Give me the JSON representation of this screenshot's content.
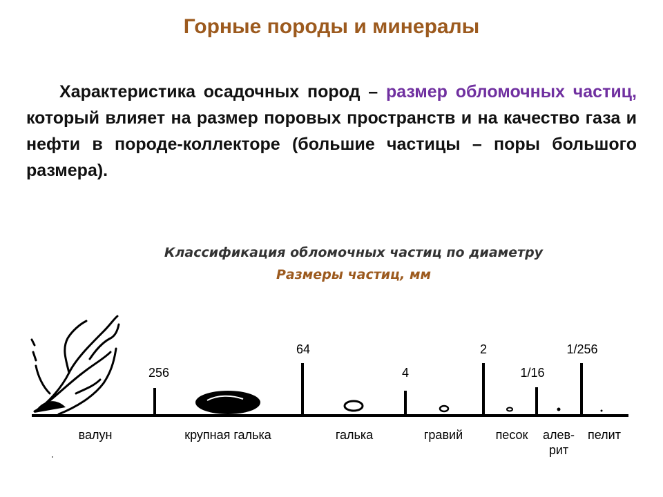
{
  "slide": {
    "title": "Горные породы и минералы",
    "para_part1": "Характеристика осадочных пород – ",
    "para_highlight": "размер обломочных частиц,",
    "para_part2": " который влияет на размер поровых пространств и на качество газа и нефти в породе-коллекторе (большие частицы – поры большого размера).",
    "subtitle": "Классификация обломочных частиц по диаметру",
    "subtitle2": "Размеры частиц, мм"
  },
  "scale": {
    "ticks": {
      "t256": "256",
      "t64": "64",
      "t4": "4",
      "t2": "2",
      "t1_16": "1/16",
      "t1_256": "1/256"
    },
    "labels": {
      "boulder": "валун",
      "cobble": "крупная галька",
      "pebble": "галька",
      "gravel": "гравий",
      "sand": "песок",
      "silt_line1": "алев-",
      "silt_line2": "рит",
      "clay": "пелит"
    }
  },
  "colors": {
    "title": "#9c5a1e",
    "highlight": "#7030a0",
    "text": "#111111"
  }
}
